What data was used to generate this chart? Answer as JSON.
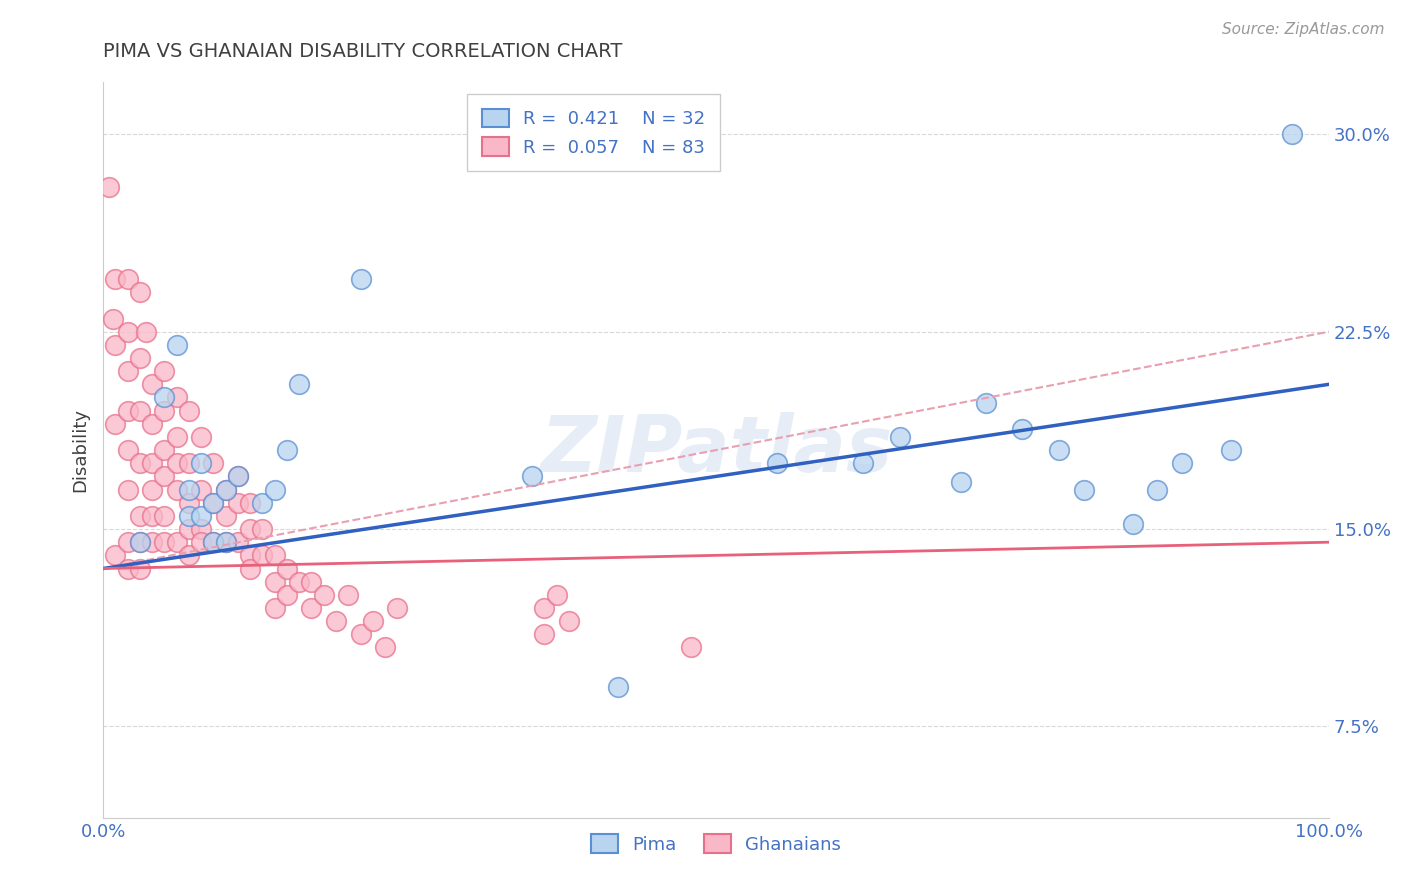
{
  "title": "PIMA VS GHANAIAN DISABILITY CORRELATION CHART",
  "source": "Source: ZipAtlas.com",
  "xlabel": "",
  "ylabel": "Disability",
  "xlim": [
    0.0,
    1.0
  ],
  "ylim": [
    0.04,
    0.32
  ],
  "yticks": [
    0.075,
    0.15,
    0.225,
    0.3
  ],
  "ytick_labels": [
    "7.5%",
    "15.0%",
    "22.5%",
    "30.0%"
  ],
  "xticks": [
    0.0,
    1.0
  ],
  "xtick_labels": [
    "0.0%",
    "100.0%"
  ],
  "legend_r_pima": "R =  0.421",
  "legend_n_pima": "N = 32",
  "legend_r_ghanaian": "R =  0.057",
  "legend_n_ghanaian": "N = 83",
  "pima_color": "#b8d4ee",
  "ghanaian_color": "#f9b8c8",
  "pima_edge_color": "#5b8fd4",
  "ghanaian_edge_color": "#e8708a",
  "pima_line_color": "#3060c0",
  "ghanaian_line_color": "#e8607a",
  "trend_dash_color": "#e8a0b0",
  "background_color": "#ffffff",
  "grid_color": "#d8d8d8",
  "title_color": "#404040",
  "axis_label_color": "#4472c4",
  "pima_scatter_x": [
    0.03,
    0.05,
    0.06,
    0.07,
    0.07,
    0.08,
    0.08,
    0.09,
    0.09,
    0.1,
    0.1,
    0.11,
    0.13,
    0.14,
    0.15,
    0.16,
    0.21,
    0.35,
    0.42,
    0.55,
    0.62,
    0.65,
    0.7,
    0.72,
    0.75,
    0.78,
    0.8,
    0.84,
    0.86,
    0.88,
    0.92,
    0.97
  ],
  "pima_scatter_y": [
    0.145,
    0.2,
    0.22,
    0.165,
    0.155,
    0.155,
    0.175,
    0.145,
    0.16,
    0.145,
    0.165,
    0.17,
    0.16,
    0.165,
    0.18,
    0.205,
    0.245,
    0.17,
    0.09,
    0.175,
    0.175,
    0.185,
    0.168,
    0.198,
    0.188,
    0.18,
    0.165,
    0.152,
    0.165,
    0.175,
    0.18,
    0.3
  ],
  "ghanaian_scatter_x": [
    0.005,
    0.008,
    0.01,
    0.01,
    0.01,
    0.01,
    0.02,
    0.02,
    0.02,
    0.02,
    0.02,
    0.02,
    0.02,
    0.02,
    0.03,
    0.03,
    0.03,
    0.03,
    0.03,
    0.03,
    0.03,
    0.035,
    0.04,
    0.04,
    0.04,
    0.04,
    0.04,
    0.04,
    0.05,
    0.05,
    0.05,
    0.05,
    0.05,
    0.05,
    0.06,
    0.06,
    0.06,
    0.06,
    0.06,
    0.07,
    0.07,
    0.07,
    0.07,
    0.07,
    0.08,
    0.08,
    0.08,
    0.08,
    0.09,
    0.09,
    0.09,
    0.1,
    0.1,
    0.1,
    0.11,
    0.11,
    0.11,
    0.12,
    0.12,
    0.12,
    0.12,
    0.13,
    0.13,
    0.14,
    0.14,
    0.14,
    0.15,
    0.15,
    0.16,
    0.17,
    0.17,
    0.18,
    0.19,
    0.2,
    0.21,
    0.22,
    0.23,
    0.24,
    0.36,
    0.36,
    0.37,
    0.38,
    0.48
  ],
  "ghanaian_scatter_y": [
    0.28,
    0.23,
    0.245,
    0.22,
    0.19,
    0.14,
    0.245,
    0.225,
    0.21,
    0.195,
    0.18,
    0.165,
    0.145,
    0.135,
    0.24,
    0.215,
    0.195,
    0.175,
    0.155,
    0.145,
    0.135,
    0.225,
    0.205,
    0.19,
    0.175,
    0.165,
    0.155,
    0.145,
    0.21,
    0.195,
    0.18,
    0.17,
    0.155,
    0.145,
    0.2,
    0.185,
    0.175,
    0.165,
    0.145,
    0.195,
    0.175,
    0.16,
    0.15,
    0.14,
    0.185,
    0.165,
    0.15,
    0.145,
    0.175,
    0.16,
    0.145,
    0.165,
    0.155,
    0.145,
    0.17,
    0.16,
    0.145,
    0.16,
    0.15,
    0.14,
    0.135,
    0.15,
    0.14,
    0.14,
    0.13,
    0.12,
    0.135,
    0.125,
    0.13,
    0.13,
    0.12,
    0.125,
    0.115,
    0.125,
    0.11,
    0.115,
    0.105,
    0.12,
    0.12,
    0.11,
    0.125,
    0.115,
    0.105
  ],
  "pima_trend_x": [
    0.0,
    1.0
  ],
  "pima_trend_y": [
    0.135,
    0.205
  ],
  "ghanaian_trend_x": [
    0.0,
    1.0
  ],
  "ghanaian_trend_y": [
    0.135,
    0.145
  ],
  "dash_trend_x": [
    0.0,
    1.0
  ],
  "dash_trend_y": [
    0.135,
    0.225
  ]
}
